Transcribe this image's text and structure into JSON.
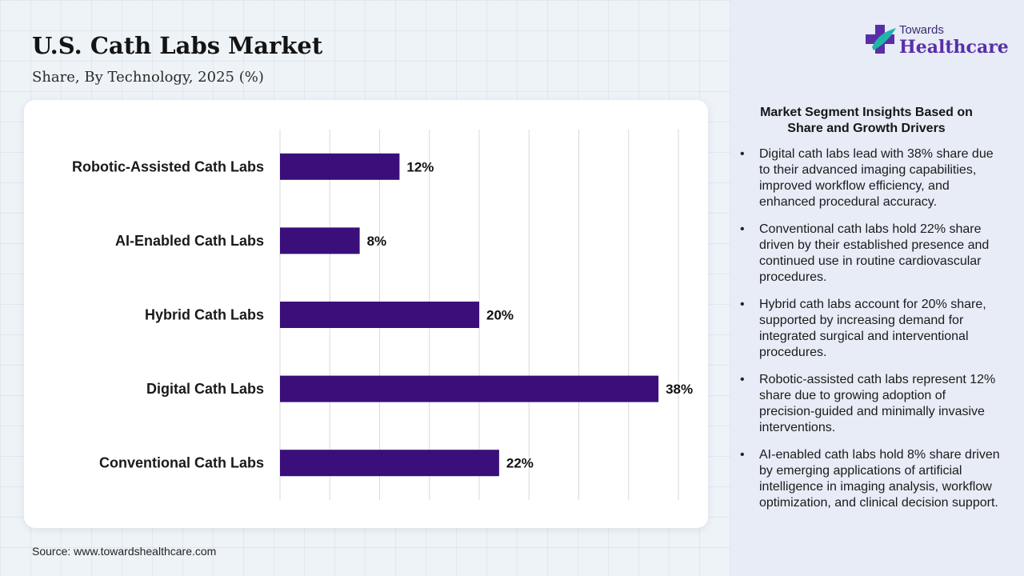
{
  "header": {
    "title": "U.S. Cath Labs Market",
    "subtitle": "Share, By Technology, 2025 (%)"
  },
  "brand": {
    "line1": "Towards",
    "line2": "Healthcare",
    "colors": {
      "primary": "#5a2ea8",
      "accent": "#1fb5a8"
    }
  },
  "chart_data": {
    "type": "bar",
    "orientation": "horizontal",
    "title": "",
    "categories": [
      "Robotic-Assisted Cath Labs",
      "AI-Enabled Cath Labs",
      "Hybrid Cath Labs",
      "Digital Cath Labs",
      "Conventional Cath Labs"
    ],
    "values": [
      12,
      8,
      20,
      38,
      22
    ],
    "labels": [
      "12%",
      "8%",
      "20%",
      "38%",
      "22%"
    ],
    "xlim": [
      0,
      40
    ],
    "grid": true,
    "legend": "none",
    "bar_color": "#3a0f7a"
  },
  "insights": {
    "heading": "Market Segment Insights Based on Share and Growth Drivers",
    "items": [
      "Digital cath labs lead with 38% share due to their advanced imaging capabilities, improved workflow efficiency, and enhanced procedural accuracy.",
      "Conventional cath labs hold 22% share driven by their established presence and continued use in routine cardiovascular procedures.",
      "Hybrid cath labs account for 20% share, supported by increasing demand for integrated surgical and interventional procedures.",
      "Robotic-assisted cath labs represent 12% share due to growing adoption of precision-guided and minimally invasive interventions.",
      "AI-enabled cath labs hold 8% share driven by emerging applications of artificial intelligence in imaging analysis, workflow optimization, and clinical decision support."
    ]
  },
  "footer": {
    "source": "Source: www.towardshealthcare.com"
  }
}
